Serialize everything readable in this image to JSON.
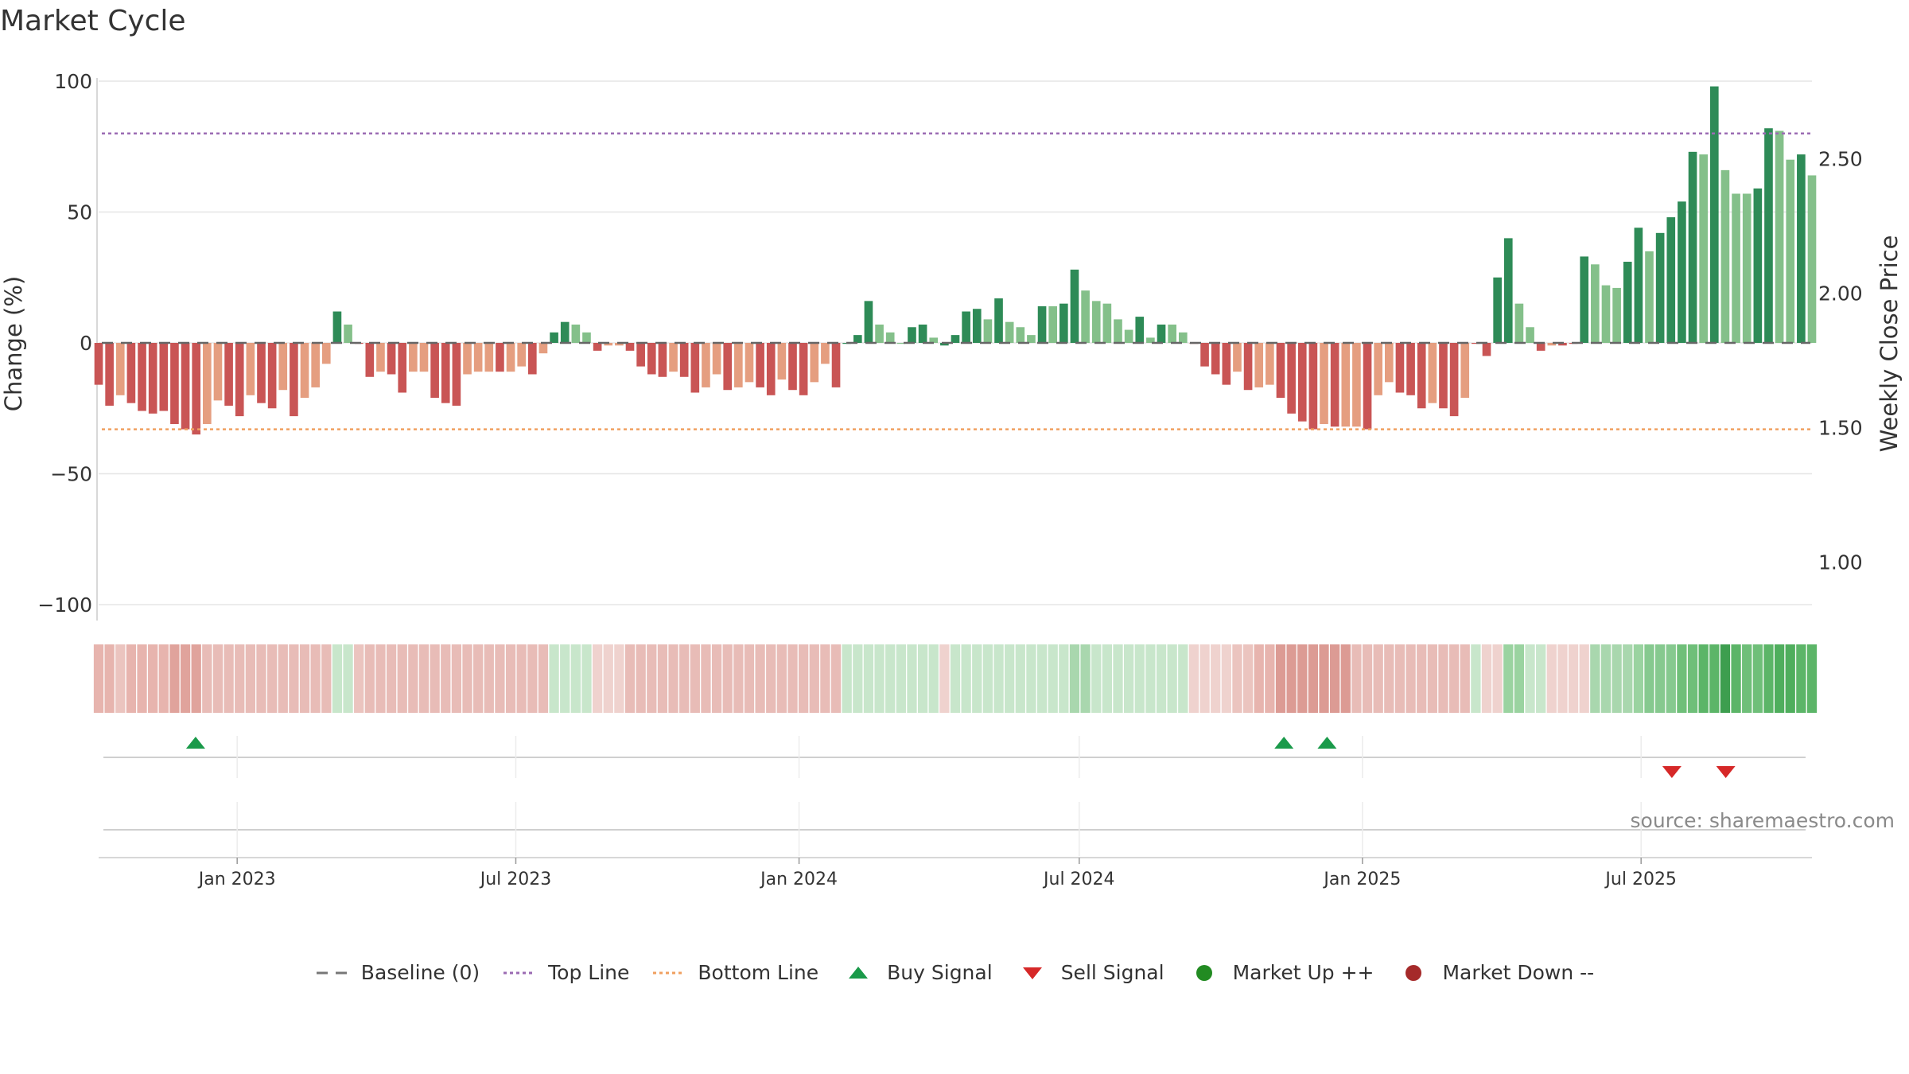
{
  "chart_data": {
    "type": "bar",
    "title": "Market Cycle",
    "ylabel": "Change (%)",
    "y2label": "Weekly Close Price",
    "ylim": [
      -100,
      100
    ],
    "y_ticks": [
      100,
      50,
      0,
      -50,
      -100
    ],
    "y_tick_labels": [
      "100",
      "50",
      "0",
      "−50",
      "−100"
    ],
    "y2lim": [
      0.8,
      2.8
    ],
    "y2_ticks": [
      2.5,
      2.0,
      1.5,
      1.0
    ],
    "y2_tick_labels": [
      "2.50",
      "2.00",
      "1.50",
      "1.00"
    ],
    "x_start": "2022-10-03",
    "x_end": "2025-10-20",
    "x_ticks": [
      "2023-01-01",
      "2023-07-01",
      "2024-01-01",
      "2024-07-01",
      "2025-01-01",
      "2025-07-01"
    ],
    "x_tick_labels": [
      "Jan 2023",
      "Jul 2023",
      "Jan 2024",
      "Jul 2024",
      "Jan 2025",
      "Jul 2025"
    ],
    "top_line": 80,
    "bottom_line": -33,
    "baseline": 0,
    "grid": true,
    "legend_position": "bottom-center",
    "series": [
      {
        "values": [
          -16,
          -24,
          -20,
          -23,
          -26,
          -27,
          -26,
          -31,
          -33,
          -35,
          -31,
          -22,
          -24,
          -28,
          -20,
          -23,
          -25,
          -18,
          -28,
          -21,
          -17,
          -8,
          12,
          7,
          0,
          -13,
          -11,
          -12,
          -19,
          -11,
          -11,
          -21,
          -23,
          -24,
          -12,
          -11,
          -11,
          -11,
          -11,
          -9,
          -12,
          -4,
          4,
          8,
          7,
          4,
          -3,
          -1,
          -1,
          -3,
          -9,
          -12,
          -13,
          -11,
          -13,
          -19,
          -17,
          -12,
          -18,
          -17,
          -15,
          -17,
          -20,
          -14,
          -18,
          -20,
          -15,
          -8,
          -17,
          0,
          3,
          16,
          7,
          4,
          0,
          6,
          7,
          2,
          -1,
          3,
          12,
          13,
          9,
          17,
          8,
          6,
          3,
          14,
          14,
          15,
          28,
          20,
          16,
          15,
          9,
          5,
          10,
          2,
          7,
          7,
          4,
          0,
          -9,
          -12,
          -16,
          -11,
          -18,
          -17,
          -16,
          -21,
          -27,
          -30,
          -33,
          -31,
          -32,
          -32,
          -32,
          -33,
          -20,
          -15,
          -19,
          -20,
          -25,
          -23,
          -25,
          -28,
          -21,
          0,
          -5,
          25,
          40,
          15,
          6,
          -3,
          -1,
          -1,
          0,
          33,
          30,
          22,
          21,
          31,
          44,
          35,
          42,
          48,
          54,
          73,
          72,
          98,
          66,
          57,
          57,
          59,
          82,
          81,
          70,
          72,
          64
        ],
        "colors": [
          "#c95555",
          "#c95555",
          "#e59e80",
          "#c95555",
          "#c95555",
          "#c95555",
          "#c95555",
          "#c95555",
          "#c95555",
          "#c95555",
          "#e59e80",
          "#e59e80",
          "#c95555",
          "#c95555",
          "#e59e80",
          "#c95555",
          "#c95555",
          "#e59e80",
          "#c95555",
          "#e59e80",
          "#e59e80",
          "#e59e80",
          "#2e8b57",
          "#84c08a",
          "#c95555",
          "#c95555",
          "#e59e80",
          "#c95555",
          "#c95555",
          "#e59e80",
          "#e59e80",
          "#c95555",
          "#c95555",
          "#c95555",
          "#e59e80",
          "#e59e80",
          "#e59e80",
          "#c95555",
          "#e59e80",
          "#e59e80",
          "#c95555",
          "#e59e80",
          "#2e8b57",
          "#2e8b57",
          "#84c08a",
          "#84c08a",
          "#c95555",
          "#e59e80",
          "#e59e80",
          "#c95555",
          "#c95555",
          "#c95555",
          "#c95555",
          "#e59e80",
          "#c95555",
          "#c95555",
          "#e59e80",
          "#e59e80",
          "#c95555",
          "#e59e80",
          "#e59e80",
          "#c95555",
          "#c95555",
          "#e59e80",
          "#c95555",
          "#c95555",
          "#e59e80",
          "#e59e80",
          "#c95555",
          "#2e8b57",
          "#2e8b57",
          "#2e8b57",
          "#84c08a",
          "#84c08a",
          "#84c08a",
          "#2e8b57",
          "#2e8b57",
          "#84c08a",
          "#2e8b57",
          "#2e8b57",
          "#2e8b57",
          "#2e8b57",
          "#84c08a",
          "#2e8b57",
          "#84c08a",
          "#84c08a",
          "#84c08a",
          "#2e8b57",
          "#84c08a",
          "#2e8b57",
          "#2e8b57",
          "#84c08a",
          "#84c08a",
          "#84c08a",
          "#84c08a",
          "#84c08a",
          "#2e8b57",
          "#84c08a",
          "#2e8b57",
          "#84c08a",
          "#84c08a",
          "#c95555",
          "#c95555",
          "#c95555",
          "#c95555",
          "#e59e80",
          "#c95555",
          "#e59e80",
          "#e59e80",
          "#c95555",
          "#c95555",
          "#c95555",
          "#c95555",
          "#e59e80",
          "#c95555",
          "#e59e80",
          "#e59e80",
          "#c95555",
          "#e59e80",
          "#e59e80",
          "#c95555",
          "#c95555",
          "#c95555",
          "#e59e80",
          "#c95555",
          "#c95555",
          "#e59e80",
          "#c95555",
          "#c95555",
          "#2e8b57",
          "#2e8b57",
          "#84c08a",
          "#84c08a",
          "#c95555",
          "#e59e80",
          "#c95555",
          "#c95555",
          "#2e8b57",
          "#84c08a",
          "#84c08a",
          "#84c08a",
          "#2e8b57",
          "#2e8b57",
          "#84c08a",
          "#2e8b57",
          "#2e8b57",
          "#2e8b57",
          "#2e8b57",
          "#84c08a",
          "#2e8b57",
          "#84c08a",
          "#84c08a",
          "#84c08a",
          "#2e8b57",
          "#2e8b57",
          "#84c08a",
          "#84c08a",
          "#2e8b57",
          "#84c08a"
        ]
      }
    ],
    "heat_strip_colors": {
      "0": "#e7b4ae",
      "1": "#e7b4ae",
      "2": "#ebc4bf",
      "3": "#e7b4ae",
      "4": "#e7b4ae",
      "5": "#e7b4ae",
      "6": "#e7b4ae",
      "7": "#e0a39c",
      "8": "#e0a39c",
      "9": "#e0a39c",
      "22": "#c8e6cb",
      "23": "#c8e6cb",
      "24": "#ebc4bf",
      "42": "#c8e6cb",
      "43": "#c8e6cb",
      "44": "#c8e6cb",
      "45": "#c8e6cb",
      "46": "#efd2ce",
      "47": "#efd2ce",
      "48": "#efd2ce",
      "69": "#c8e6cb",
      "70": "#c8e6cb",
      "71": "#c8e6cb",
      "72": "#c8e6cb",
      "73": "#c8e6cb",
      "74": "#c8e6cb",
      "75": "#c8e6cb",
      "76": "#c8e6cb",
      "77": "#c8e6cb",
      "78": "#efd2ce",
      "79": "#c8e6cb",
      "80": "#c8e6cb",
      "81": "#c8e6cb",
      "82": "#c8e6cb",
      "83": "#c8e6cb",
      "84": "#c8e6cb",
      "85": "#c8e6cb",
      "86": "#c8e6cb",
      "87": "#c8e6cb",
      "88": "#c8e6cb",
      "89": "#c8e6cb",
      "90": "#a9d7ae",
      "91": "#a9d7ae",
      "92": "#c8e6cb",
      "93": "#c8e6cb",
      "94": "#c8e6cb",
      "95": "#c8e6cb",
      "96": "#c8e6cb",
      "97": "#c8e6cb",
      "98": "#c8e6cb",
      "99": "#c8e6cb",
      "100": "#c8e6cb",
      "101": "#efd2ce",
      "102": "#efd2ce",
      "103": "#efd2ce",
      "104": "#efd2ce",
      "105": "#ebc4bf",
      "106": "#ebc4bf",
      "107": "#e7b4ae",
      "108": "#e7b4ae",
      "109": "#dc9b94",
      "110": "#dc9b94",
      "111": "#dc9b94",
      "112": "#dc9b94",
      "113": "#dc9b94",
      "114": "#dc9b94",
      "115": "#dc9b94",
      "128": "#efd2ce",
      "129": "#efd2ce",
      "130": "#9ad3a0",
      "131": "#9ad3a0",
      "132": "#c8e6cb",
      "133": "#c8e6cb",
      "134": "#efd2ce",
      "135": "#efd2ce",
      "136": "#efd2ce",
      "137": "#efd2ce",
      "138": "#a9d7ae",
      "139": "#a9d7ae",
      "140": "#a9d7ae",
      "141": "#a9d7ae",
      "142": "#9ad3a0",
      "143": "#86c98f",
      "144": "#86c98f",
      "145": "#86c98f",
      "146": "#6fbf79",
      "147": "#6fbf79",
      "148": "#5cb568",
      "149": "#5cb568",
      "150": "#3d9e4f",
      "151": "#5cb568",
      "152": "#6fbf79",
      "153": "#6fbf79",
      "154": "#5cb568",
      "155": "#4fae5d",
      "156": "#4fae5d",
      "157": "#5cb568",
      "158": "#5cb568",
      "159": "#6fbf79"
    },
    "heat_strip_default": {
      "neg": "#e8bcb7",
      "pos": "#c8e6cb"
    },
    "buy_signals": [
      "2022-12-05",
      "2024-11-11",
      "2024-12-09"
    ],
    "sell_signals": [
      "2025-07-21",
      "2025-08-25"
    ],
    "legend": [
      {
        "label": "Baseline (0)",
        "icon": "dash-line",
        "color": "#777777"
      },
      {
        "label": "Top Line",
        "icon": "dotted-line",
        "color": "#9b6bb3"
      },
      {
        "label": "Bottom Line",
        "icon": "dotted-line",
        "color": "#f0a060"
      },
      {
        "label": "Buy Signal",
        "icon": "triangle-up",
        "color": "#1a9a4a"
      },
      {
        "label": "Sell Signal",
        "icon": "triangle-down",
        "color": "#d62828"
      },
      {
        "label": "Market Up ++",
        "icon": "circle",
        "color": "#228b22"
      },
      {
        "label": "Market Down --",
        "icon": "circle",
        "color": "#a52a2a"
      }
    ],
    "source": "source: sharemaestro.com"
  }
}
